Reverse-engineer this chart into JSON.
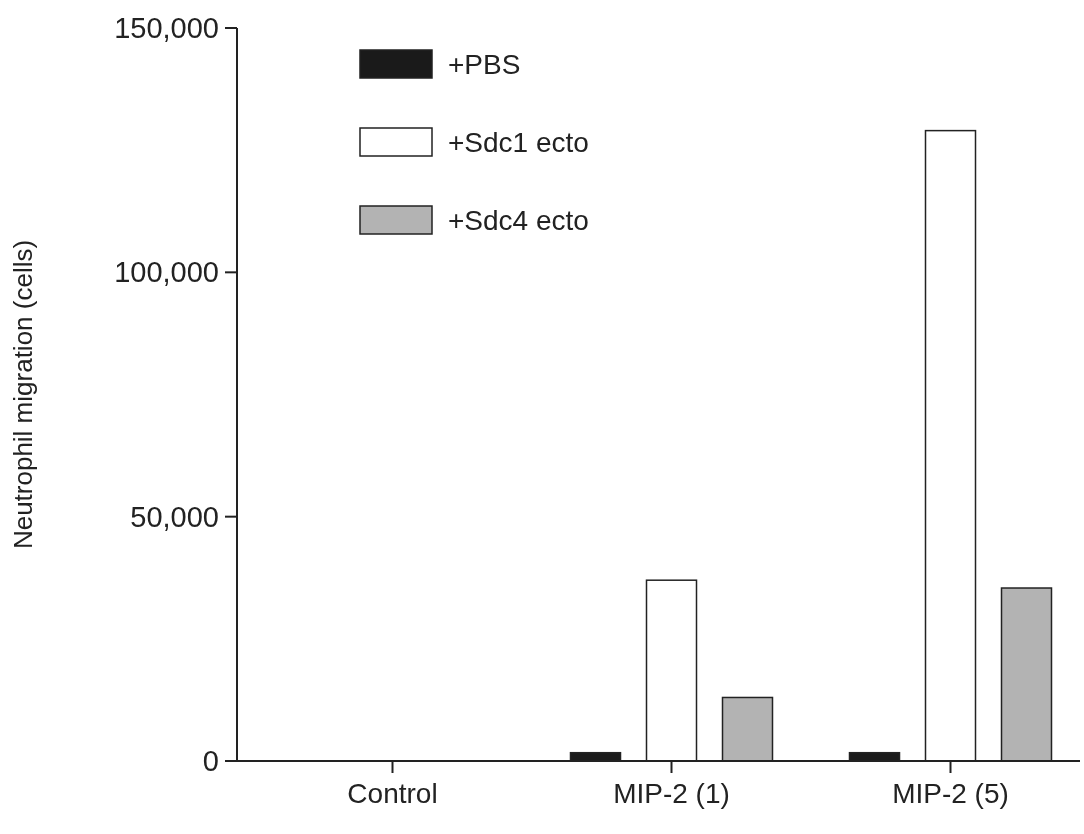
{
  "chart_data": {
    "type": "bar",
    "ylabel": "Neutrophil migration (cells)",
    "categories": [
      "Control",
      "MIP-2 (1)",
      "MIP-2 (5)"
    ],
    "series": [
      {
        "name": "+PBS",
        "color": "#1a1a1a",
        "values": [
          0,
          1700,
          1700
        ]
      },
      {
        "name": "+Sdc1 ecto",
        "color": "#ffffff",
        "values": [
          0,
          37000,
          129000
        ]
      },
      {
        "name": "+Sdc4 ecto",
        "color": "#b3b3b3",
        "values": [
          0,
          13000,
          35400
        ]
      }
    ],
    "ylim": [
      0,
      150000
    ],
    "yticks": [
      {
        "value": 0,
        "label": "0"
      },
      {
        "value": 50000,
        "label": "50,000"
      },
      {
        "value": 100000,
        "label": "100,000"
      },
      {
        "value": 150000,
        "label": "150,000"
      }
    ],
    "grid": false,
    "legend": "top left"
  }
}
